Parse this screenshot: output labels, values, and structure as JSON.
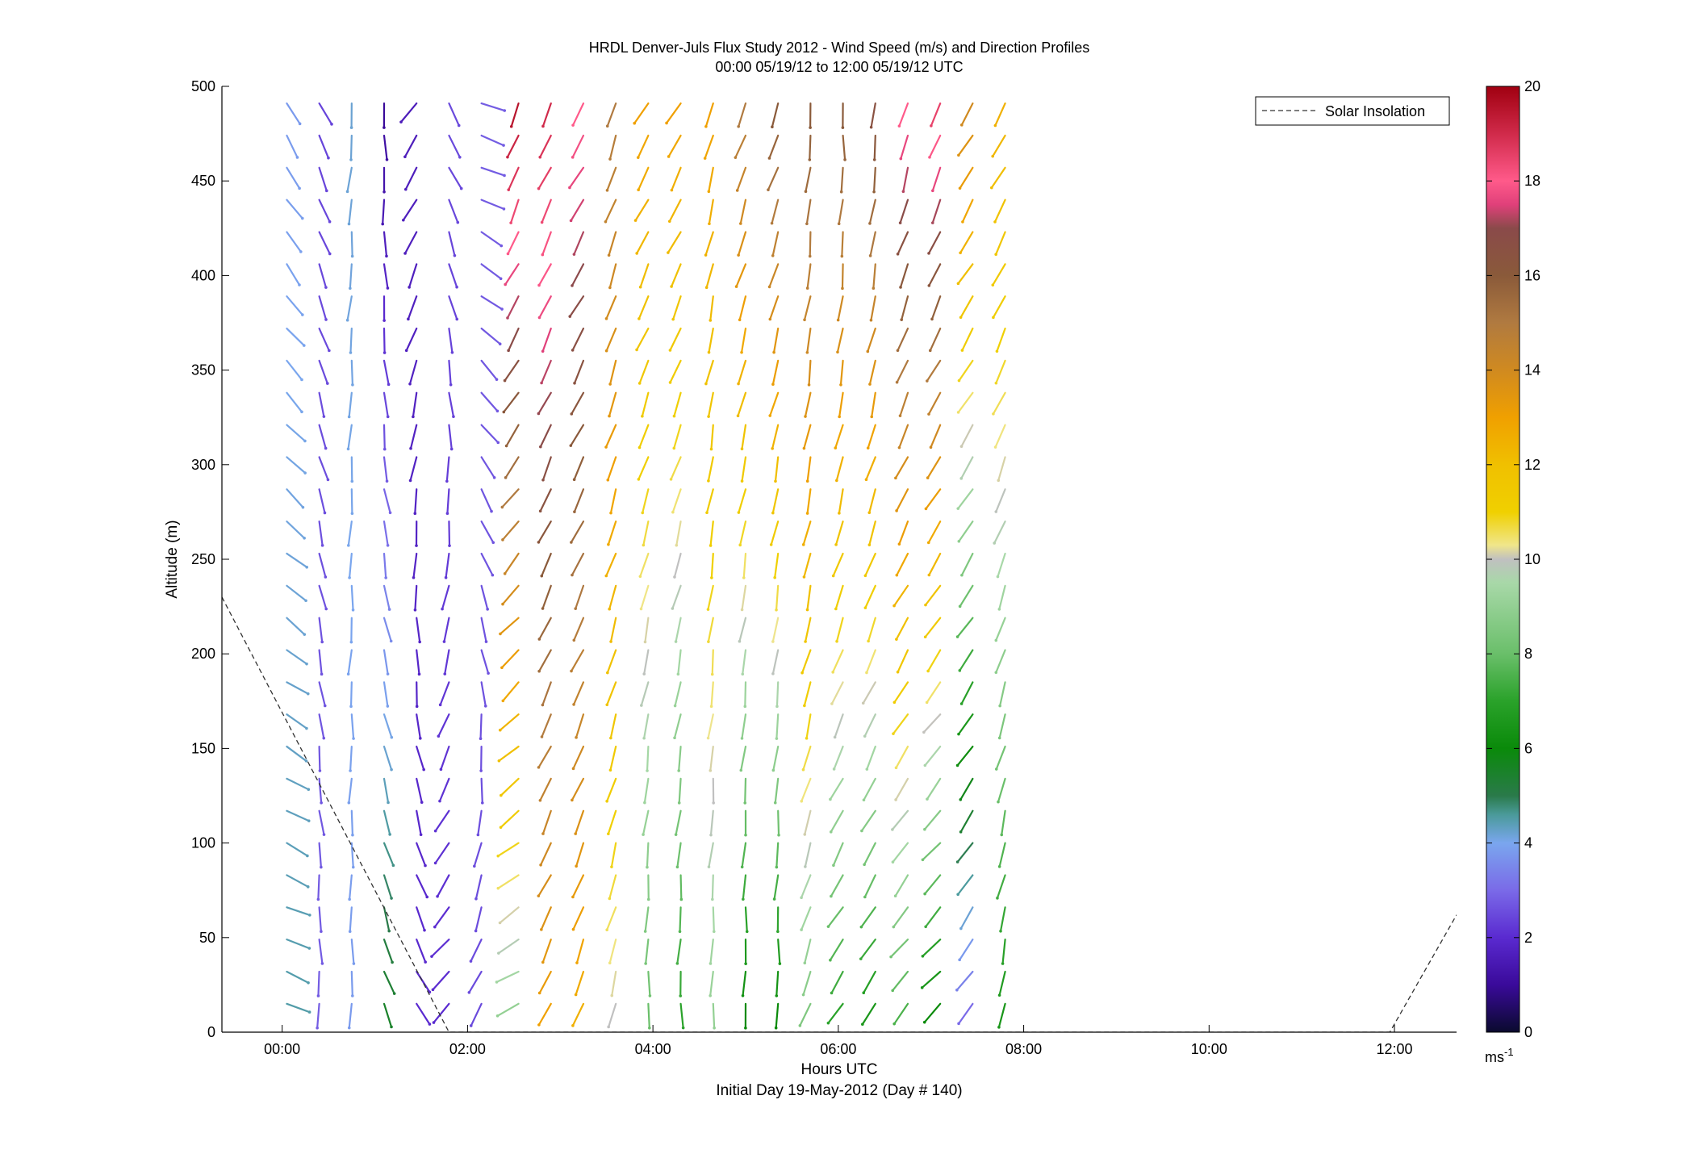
{
  "chart_data": {
    "type": "wind-barb-profile",
    "title": "HRDL Denver-Juls Flux Study 2012 - Wind Speed (m/s) and Direction Profiles",
    "subtitle": "00:00 05/19/12 to 12:00 05/19/12  UTC",
    "xlabel": "Hours UTC",
    "xlabel2": "Initial Day 19-May-2012 (Day # 140)",
    "ylabel": "Altitude (m)",
    "xlim": [
      -0.65,
      12.67
    ],
    "ylim": [
      0,
      500
    ],
    "xticks": [
      0,
      2,
      4,
      6,
      8,
      10,
      12
    ],
    "xtick_labels": [
      "00:00",
      "02:00",
      "04:00",
      "06:00",
      "08:00",
      "10:00",
      "12:00"
    ],
    "yticks": [
      0,
      50,
      100,
      150,
      200,
      250,
      300,
      350,
      400,
      450,
      500
    ],
    "ytick_labels": [
      "0",
      "50",
      "100",
      "150",
      "200",
      "250",
      "300",
      "350",
      "400",
      "450",
      "500"
    ],
    "legend": {
      "location": "top-right",
      "entries": [
        "Solar Insolation"
      ]
    },
    "colorbar": {
      "label": "ms-1",
      "label_main": "ms",
      "label_sup": "-1",
      "range": [
        0,
        20
      ],
      "ticks": [
        0,
        2,
        4,
        6,
        8,
        10,
        12,
        14,
        16,
        18,
        20
      ],
      "tick_labels": [
        "0",
        "2",
        "4",
        "6",
        "8",
        "10",
        "12",
        "14",
        "16",
        "18",
        "20"
      ],
      "colormap": [
        [
          0,
          "#0a0a2e"
        ],
        [
          1,
          "#3a0a9a"
        ],
        [
          2,
          "#5a2ad0"
        ],
        [
          3,
          "#7a6ae8"
        ],
        [
          4,
          "#7aa6ee"
        ],
        [
          4.6,
          "#4a9a9a"
        ],
        [
          5,
          "#2a7a4a"
        ],
        [
          6,
          "#0a8a0a"
        ],
        [
          7,
          "#2aa22a"
        ],
        [
          8,
          "#6abf6a"
        ],
        [
          9.5,
          "#a8d8a8"
        ],
        [
          10,
          "#c0c0c0"
        ],
        [
          10.3,
          "#f0e68a"
        ],
        [
          11,
          "#f0d000"
        ],
        [
          12,
          "#f0c000"
        ],
        [
          13,
          "#f0a000"
        ],
        [
          14,
          "#d08a20"
        ],
        [
          15,
          "#b07a40"
        ],
        [
          16,
          "#8a5a3a"
        ],
        [
          17,
          "#8a4a4a"
        ],
        [
          17.5,
          "#e0407a"
        ],
        [
          18,
          "#ff5a8a"
        ],
        [
          19,
          "#d02a4a"
        ],
        [
          20,
          "#a00010"
        ]
      ]
    },
    "profile_times": [
      0.05,
      0.4,
      0.75,
      1.1,
      1.45,
      1.8,
      2.15,
      2.55,
      2.9,
      3.25,
      3.6,
      3.95,
      4.3,
      4.65,
      5.0,
      5.35,
      5.7,
      6.05,
      6.4,
      6.75,
      7.1,
      7.45,
      7.8
    ],
    "altitudes": [
      15,
      32,
      49,
      66,
      83,
      100,
      117,
      134,
      151,
      168,
      185,
      202,
      219,
      236,
      253,
      270,
      287,
      304,
      321,
      338,
      355,
      372,
      389,
      406,
      423,
      440,
      457,
      474,
      491
    ],
    "profiles": [
      {
        "time": 0.05,
        "speed_low": 4.5,
        "speed_high": 3.8,
        "dir_low": 110,
        "dir_high": 150
      },
      {
        "time": 0.4,
        "speed_low": 2.8,
        "speed_high": 2.4,
        "dir_low": 180,
        "dir_high": 155
      },
      {
        "time": 0.75,
        "speed_low": 3.8,
        "speed_high": 4.2,
        "dir_low": 180,
        "dir_high": 185
      },
      {
        "time": 1.1,
        "speed_low": 5.5,
        "speed_high": 1.0,
        "dir_low": 160,
        "dir_high": 180
      },
      {
        "time": 1.45,
        "speed_low": 2.0,
        "speed_high": 1.6,
        "dir_low": 150,
        "dir_high": 215
      },
      {
        "time": 1.8,
        "speed_low": 2.0,
        "speed_high": 2.5,
        "dir_low": 225,
        "dir_high": 150
      },
      {
        "time": 2.15,
        "speed_low": 2.5,
        "speed_high": 2.8,
        "dir_low": 210,
        "dir_high": 105
      },
      {
        "time": 2.55,
        "speed_low": 9.0,
        "speed_high": 19.5,
        "dir_low": 240,
        "dir_high": 200
      },
      {
        "time": 2.9,
        "speed_low": 13.0,
        "speed_high": 19.0,
        "dir_low": 205,
        "dir_high": 205
      },
      {
        "time": 3.25,
        "speed_low": 12.5,
        "speed_high": 18.0,
        "dir_low": 200,
        "dir_high": 210
      },
      {
        "time": 3.6,
        "speed_low": 10.0,
        "speed_high": 15.0,
        "dir_low": 195,
        "dir_high": 200
      },
      {
        "time": 3.95,
        "speed_low": 8.0,
        "speed_high": 13.0,
        "dir_low": 180,
        "dir_high": 210
      },
      {
        "time": 4.3,
        "speed_low": 7.0,
        "speed_high": 13.0,
        "dir_low": 180,
        "dir_high": 210
      },
      {
        "time": 4.65,
        "speed_low": 9.0,
        "speed_high": 13.0,
        "dir_low": 182,
        "dir_high": 195
      },
      {
        "time": 5.0,
        "speed_low": 6.0,
        "speed_high": 15.0,
        "dir_low": 180,
        "dir_high": 200
      },
      {
        "time": 5.35,
        "speed_low": 6.0,
        "speed_high": 16.0,
        "dir_low": 180,
        "dir_high": 200
      },
      {
        "time": 5.7,
        "speed_low": 8.5,
        "speed_high": 16.0,
        "dir_low": 200,
        "dir_high": 185
      },
      {
        "time": 6.05,
        "speed_low": 7.0,
        "speed_high": 16.0,
        "dir_low": 215,
        "dir_high": 180
      },
      {
        "time": 6.4,
        "speed_low": 6.5,
        "speed_high": 16.5,
        "dir_low": 215,
        "dir_high": 185
      },
      {
        "time": 6.75,
        "speed_low": 7.5,
        "speed_high": 18.0,
        "dir_low": 220,
        "dir_high": 195
      },
      {
        "time": 7.1,
        "speed_low": 6.0,
        "speed_high": 18.5,
        "dir_low": 225,
        "dir_high": 200
      },
      {
        "time": 7.45,
        "speed_low": 3.0,
        "speed_high": 14.0,
        "dir_low": 215,
        "dir_high": 210
      },
      {
        "time": 7.8,
        "speed_low": 6.5,
        "speed_high": 12.5,
        "dir_low": 190,
        "dir_high": 210
      }
    ],
    "solar_insolation": [
      {
        "x": -0.65,
        "y": 230
      },
      {
        "x": 1.8,
        "y": 0
      },
      {
        "x": 11.95,
        "y": 0
      },
      {
        "x": 12.67,
        "y": 62
      }
    ]
  }
}
